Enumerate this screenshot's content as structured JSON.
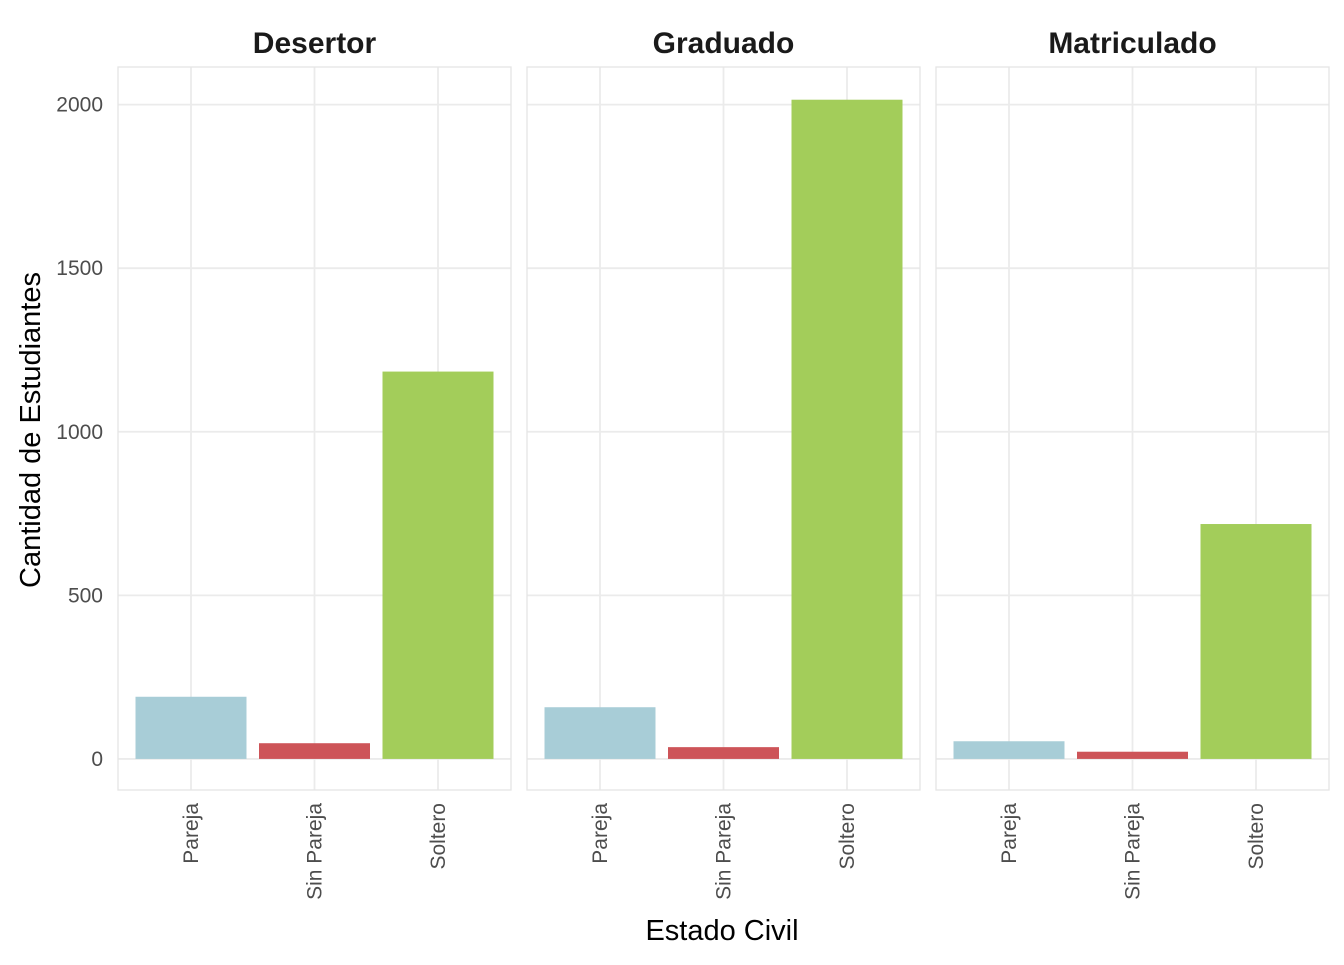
{
  "chart_data": {
    "type": "bar",
    "xlabel": "Estado Civil",
    "ylabel": "Cantidad de Estudiantes",
    "categories": [
      "Pareja",
      "Sin Pareja",
      "Soltero"
    ],
    "ylim": [
      -95,
      2115
    ],
    "yticks": [
      0,
      500,
      1000,
      1500,
      2000
    ],
    "colors": {
      "Pareja": "#a8cdd7",
      "Sin Pareja": "#cd5458",
      "Soltero": "#a3cd5a"
    },
    "grid": true,
    "legend": "none",
    "facets": [
      {
        "title": "Desertor",
        "values": [
          190,
          48,
          1184
        ]
      },
      {
        "title": "Graduado",
        "values": [
          158,
          36,
          2015
        ]
      },
      {
        "title": "Matriculado",
        "values": [
          54,
          22,
          718
        ]
      }
    ]
  }
}
